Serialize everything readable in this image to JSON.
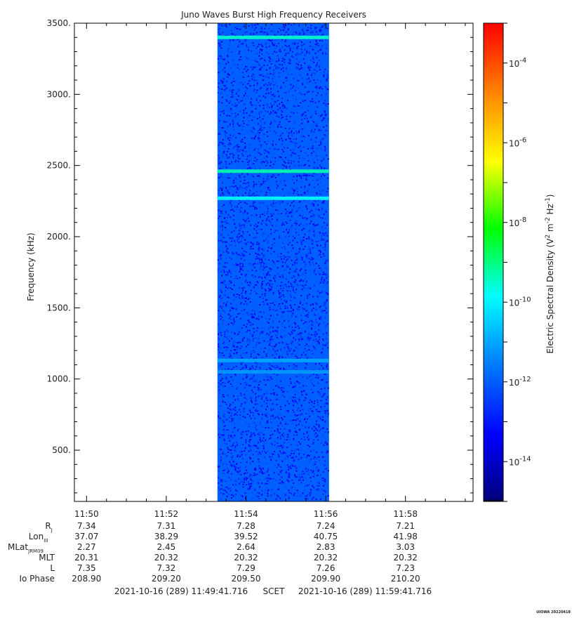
{
  "chart_data": {
    "type": "heatmap",
    "title": "Juno Waves Burst High Frequency Receivers",
    "ylabel": "Frequency (kHz)",
    "ylim": [
      140,
      3500
    ],
    "yticks": [
      500,
      1000,
      1500,
      2000,
      2500,
      3000,
      3500
    ],
    "ytick_labels": [
      "500.",
      "1000.",
      "1500.",
      "2000.",
      "2500.",
      "3000.",
      "3500."
    ],
    "xlim": [
      "11:49:41.716",
      "11:59:41.716"
    ],
    "xticks": [
      "11:50",
      "11:52",
      "11:54",
      "11:56",
      "11:58"
    ],
    "data_extent": {
      "start": "11:53:17",
      "end": "11:56:05"
    },
    "background_level_exponent": -12,
    "bands": [
      {
        "frequency_khz": 3400,
        "level_exponent": -9.5
      },
      {
        "frequency_khz": 2460,
        "level_exponent": -9.3
      },
      {
        "frequency_khz": 2270,
        "level_exponent": -9.8
      },
      {
        "frequency_khz": 1130,
        "level_exponent": -11
      },
      {
        "frequency_khz": 1050,
        "level_exponent": -11.2
      }
    ],
    "colorbar": {
      "label": "Electric Spectral Density (V² m⁻² Hz⁻¹)",
      "label_parts": [
        "Electric Spectral Density (V",
        "2",
        " m",
        "-2",
        " Hz",
        "-1",
        ")"
      ],
      "scale": "log",
      "range_exponent": [
        -15,
        -3
      ],
      "tick_exponents": [
        -4,
        -6,
        -8,
        -10,
        -12,
        -14
      ],
      "colormap": [
        "#00007f",
        "#0000ff",
        "#007fff",
        "#00ffff",
        "#00ff00",
        "#ffff00",
        "#ff7f00",
        "#ff0000"
      ]
    }
  },
  "ephemeris": {
    "rows": [
      {
        "label": "R",
        "sub": "J",
        "values": [
          "7.34",
          "7.31",
          "7.28",
          "7.24",
          "7.21"
        ]
      },
      {
        "label": "Lon",
        "sub": "III",
        "values": [
          "37.07",
          "38.29",
          "39.52",
          "40.75",
          "41.98"
        ]
      },
      {
        "label": "MLat",
        "sub": "JRM09",
        "values": [
          "2.27",
          "2.45",
          "2.64",
          "2.83",
          "3.03"
        ]
      },
      {
        "label": "MLT",
        "sub": "",
        "values": [
          "20.31",
          "20.32",
          "20.32",
          "20.32",
          "20.32"
        ]
      },
      {
        "label": "L",
        "sub": "",
        "values": [
          "7.35",
          "7.32",
          "7.29",
          "7.26",
          "7.23"
        ]
      },
      {
        "label": "Io Phase",
        "sub": "",
        "values": [
          "208.90",
          "209.20",
          "209.50",
          "209.90",
          "210.20"
        ]
      }
    ]
  },
  "footer": {
    "start": "2021-10-16 (289) 11:49:41.716",
    "scet": "SCET",
    "end": "2021-10-16 (289) 11:59:41.716",
    "version": "UIOWA 20220418"
  }
}
